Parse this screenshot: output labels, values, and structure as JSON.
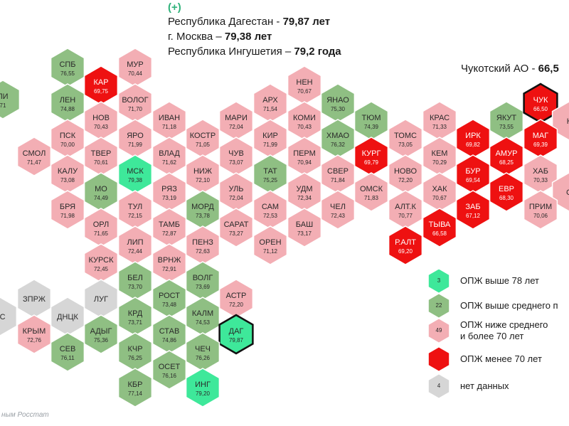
{
  "header": {
    "plus": "(+)",
    "lines": [
      {
        "name": "Республика Дагестан",
        "sep": " - ",
        "value": "79,87 лет"
      },
      {
        "name": "г. Москва",
        "sep": " – ",
        "value": "79,38 лет"
      },
      {
        "name": "Республика Ингушетия",
        "sep": " – ",
        "value": "79,2 года"
      }
    ]
  },
  "note": {
    "name": "Чукотский АО",
    "sep": " - ",
    "value": "66,5"
  },
  "legend": [
    {
      "key": "top",
      "count": "3",
      "label": "ОПЖ выше 78 лет"
    },
    {
      "key": "above",
      "count": "22",
      "label": "ОПЖ выше среднего п"
    },
    {
      "key": "below",
      "count": "49",
      "label": "ОПЖ ниже среднего\nи более 70 лет"
    },
    {
      "key": "low",
      "count": "",
      "label": "ОПЖ менее 70 лет"
    },
    {
      "key": "nodata",
      "count": "4",
      "label": "нет данных"
    }
  ],
  "source": "ным Росстат",
  "colors": {
    "top": "#3ee89a",
    "above": "#8fbf83",
    "below": "#f3aeb4",
    "low": "#ee1111",
    "nodata": "#d6d6d6",
    "outline": "#111111",
    "text_dark": "#2a2a2a",
    "text_light": "#ffffff"
  },
  "regions": [
    {
      "name": "ЛИ",
      "value": "71",
      "cat": "above"
    },
    {
      "name": "СПБ",
      "value": "76,55",
      "cat": "above"
    },
    {
      "name": "МУР",
      "value": "70,44",
      "cat": "below"
    },
    {
      "name": "КАР",
      "value": "69,75",
      "cat": "low"
    },
    {
      "name": "ЛЕН",
      "value": "74,88",
      "cat": "above"
    },
    {
      "name": "ВОЛОГ",
      "value": "71,70",
      "cat": "below"
    },
    {
      "name": "НОВ",
      "value": "70,43",
      "cat": "below"
    },
    {
      "name": "ПСК",
      "value": "70,00",
      "cat": "below"
    },
    {
      "name": "ЯРО",
      "value": "71,99",
      "cat": "below"
    },
    {
      "name": "ИВАН",
      "value": "71,18",
      "cat": "below"
    },
    {
      "name": "КОСТР",
      "value": "71,05",
      "cat": "below"
    },
    {
      "name": "МАРИ",
      "value": "72,04",
      "cat": "below"
    },
    {
      "name": "АРХ",
      "value": "71,54",
      "cat": "below"
    },
    {
      "name": "НЕН",
      "value": "70,67",
      "cat": "below"
    },
    {
      "name": "ЯНАО",
      "value": "75,30",
      "cat": "above"
    },
    {
      "name": "КОМИ",
      "value": "70,43",
      "cat": "below"
    },
    {
      "name": "ТЮМ",
      "value": "74,39",
      "cat": "above"
    },
    {
      "name": "ХМАО",
      "value": "76,32",
      "cat": "above"
    },
    {
      "name": "КРАС",
      "value": "71,33",
      "cat": "below"
    },
    {
      "name": "ТОМС",
      "value": "73,05",
      "cat": "below"
    },
    {
      "name": "ЯКУТ",
      "value": "73,55",
      "cat": "above"
    },
    {
      "name": "ЧУК",
      "value": "66,50",
      "cat": "low",
      "outlined": true
    },
    {
      "name": "К",
      "value": "",
      "cat": "below"
    },
    {
      "name": "СМОЛ",
      "value": "71,47",
      "cat": "below"
    },
    {
      "name": "ТВЕР",
      "value": "70,61",
      "cat": "below"
    },
    {
      "name": "ВЛАД",
      "value": "71,62",
      "cat": "below"
    },
    {
      "name": "ЧУВ",
      "value": "73,07",
      "cat": "below"
    },
    {
      "name": "КИР",
      "value": "71,99",
      "cat": "below"
    },
    {
      "name": "ПЕРМ",
      "value": "70,94",
      "cat": "below"
    },
    {
      "name": "КУРГ",
      "value": "69,79",
      "cat": "low"
    },
    {
      "name": "КЕМ",
      "value": "70,29",
      "cat": "below"
    },
    {
      "name": "ИРК",
      "value": "69,82",
      "cat": "low"
    },
    {
      "name": "МАГ",
      "value": "69,39",
      "cat": "low"
    },
    {
      "name": "КАЛУ",
      "value": "73,08",
      "cat": "below"
    },
    {
      "name": "МСК",
      "value": "79,38",
      "cat": "top"
    },
    {
      "name": "НИЖ",
      "value": "72,10",
      "cat": "below"
    },
    {
      "name": "ТАТ",
      "value": "75,25",
      "cat": "above"
    },
    {
      "name": "СВЕР",
      "value": "71,84",
      "cat": "below"
    },
    {
      "name": "НОВО",
      "value": "72,20",
      "cat": "below"
    },
    {
      "name": "АМУР",
      "value": "68,25",
      "cat": "low"
    },
    {
      "name": "БУР",
      "value": "69,54",
      "cat": "low"
    },
    {
      "name": "ХАБ",
      "value": "70,33",
      "cat": "below"
    },
    {
      "name": "МО",
      "value": "74,49",
      "cat": "above"
    },
    {
      "name": "РЯЗ",
      "value": "73,19",
      "cat": "below"
    },
    {
      "name": "УЛЬ",
      "value": "72,04",
      "cat": "below"
    },
    {
      "name": "УДМ",
      "value": "72,34",
      "cat": "below"
    },
    {
      "name": "ОМСК",
      "value": "71,83",
      "cat": "below"
    },
    {
      "name": "ХАК",
      "value": "70,67",
      "cat": "below"
    },
    {
      "name": "ЕВР",
      "value": "68,30",
      "cat": "low"
    },
    {
      "name": "С",
      "value": "",
      "cat": "below"
    },
    {
      "name": "БРЯ",
      "value": "71,98",
      "cat": "below"
    },
    {
      "name": "ТУЛ",
      "value": "72,15",
      "cat": "below"
    },
    {
      "name": "МОРД",
      "value": "73,78",
      "cat": "above"
    },
    {
      "name": "САМ",
      "value": "72,53",
      "cat": "below"
    },
    {
      "name": "ЧЕЛ",
      "value": "72,43",
      "cat": "below"
    },
    {
      "name": "АЛТ.К",
      "value": "70,77",
      "cat": "below"
    },
    {
      "name": "ЗАБ",
      "value": "67,12",
      "cat": "low"
    },
    {
      "name": "ПРИМ",
      "value": "70,06",
      "cat": "below"
    },
    {
      "name": "ОРЛ",
      "value": "71,65",
      "cat": "below"
    },
    {
      "name": "ТАМБ",
      "value": "72,87",
      "cat": "below"
    },
    {
      "name": "САРАТ",
      "value": "73,27",
      "cat": "below"
    },
    {
      "name": "БАШ",
      "value": "73,17",
      "cat": "below"
    },
    {
      "name": "ТЫВА",
      "value": "66,58",
      "cat": "low"
    },
    {
      "name": "ЛИП",
      "value": "72,44",
      "cat": "below"
    },
    {
      "name": "ПЕНЗ",
      "value": "72,63",
      "cat": "below"
    },
    {
      "name": "ОРЕН",
      "value": "71,12",
      "cat": "below"
    },
    {
      "name": "Р.АЛТ",
      "value": "69,20",
      "cat": "low"
    },
    {
      "name": "КУРСК",
      "value": "72,45",
      "cat": "below"
    },
    {
      "name": "ВРНЖ",
      "value": "72,91",
      "cat": "below"
    },
    {
      "name": "ЗПРЖ",
      "value": "",
      "cat": "nodata"
    },
    {
      "name": "ЛУГ",
      "value": "",
      "cat": "nodata"
    },
    {
      "name": "БЕЛ",
      "value": "73,70",
      "cat": "above"
    },
    {
      "name": "ВОЛГ",
      "value": "73,69",
      "cat": "above"
    },
    {
      "name": "РС",
      "value": "",
      "cat": "nodata"
    },
    {
      "name": "ДНЦК",
      "value": "",
      "cat": "nodata"
    },
    {
      "name": "РОСТ",
      "value": "73,48",
      "cat": "above"
    },
    {
      "name": "АСТР",
      "value": "72,20",
      "cat": "below"
    },
    {
      "name": "КРЫМ",
      "value": "72,76",
      "cat": "below"
    },
    {
      "name": "АДЫГ",
      "value": "75,36",
      "cat": "above"
    },
    {
      "name": "КРД",
      "value": "73,71",
      "cat": "above"
    },
    {
      "name": "КАЛМ",
      "value": "74,53",
      "cat": "above"
    },
    {
      "name": "ДАГ",
      "value": "79,87",
      "cat": "top",
      "outlined": true
    },
    {
      "name": "СЕВ",
      "value": "76,11",
      "cat": "above"
    },
    {
      "name": "СТАВ",
      "value": "74,86",
      "cat": "above"
    },
    {
      "name": "КЧР",
      "value": "76,25",
      "cat": "above"
    },
    {
      "name": "ЧЕЧ",
      "value": "76,26",
      "cat": "above"
    },
    {
      "name": "ОСЕТ",
      "value": "76,16",
      "cat": "above"
    },
    {
      "name": "КБР",
      "value": "77,14",
      "cat": "above"
    },
    {
      "name": "ИНГ",
      "value": "79,20",
      "cat": "top"
    }
  ]
}
